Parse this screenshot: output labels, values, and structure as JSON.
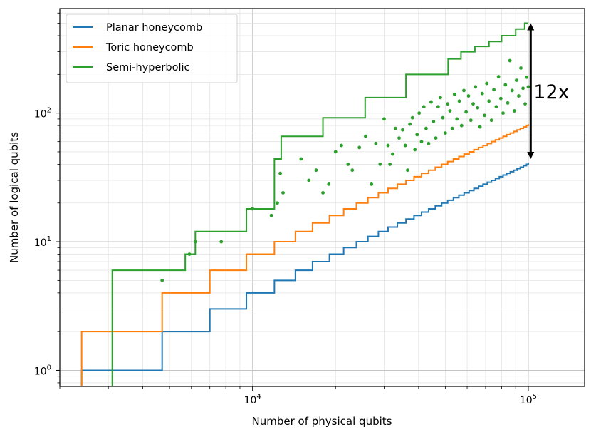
{
  "chart_data": {
    "type": "line",
    "title": "",
    "xlabel": "Number of physical qubits",
    "ylabel": "Number of logical qubits",
    "xscale": "log",
    "yscale": "log",
    "xlim": [
      2000,
      160000
    ],
    "ylim": [
      0.75,
      650
    ],
    "grid": true,
    "legend_position": "top-left",
    "x_ticks": [
      {
        "value": 10000,
        "base": "10",
        "exp": "4"
      },
      {
        "value": 100000,
        "base": "10",
        "exp": "5"
      }
    ],
    "y_ticks": [
      {
        "value": 1,
        "base": "10",
        "exp": "0"
      },
      {
        "value": 10,
        "base": "10",
        "exp": "1"
      },
      {
        "value": 100,
        "base": "10",
        "exp": "2"
      }
    ],
    "series": [
      {
        "name": "Planar honeycomb",
        "color": "#1f77b4",
        "style": "step",
        "points": [
          [
            2400,
            0.75
          ],
          [
            2400,
            1
          ],
          [
            4700,
            1
          ],
          [
            4700,
            2
          ],
          [
            7000,
            2
          ],
          [
            7000,
            3
          ],
          [
            9500,
            3
          ],
          [
            9500,
            4
          ],
          [
            12000,
            4
          ],
          [
            12000,
            5
          ],
          [
            14300,
            5
          ],
          [
            14300,
            6
          ],
          [
            16500,
            6
          ],
          [
            16500,
            7
          ],
          [
            19000,
            7
          ],
          [
            19000,
            8
          ],
          [
            21400,
            8
          ],
          [
            21400,
            9
          ],
          [
            23800,
            9
          ],
          [
            23800,
            10
          ],
          [
            26200,
            10
          ],
          [
            26200,
            11
          ],
          [
            28600,
            11
          ],
          [
            28600,
            12
          ],
          [
            31000,
            12
          ],
          [
            31000,
            13
          ],
          [
            33500,
            13
          ],
          [
            33500,
            14
          ],
          [
            36000,
            14
          ],
          [
            36000,
            15
          ],
          [
            38500,
            15
          ],
          [
            38500,
            16
          ],
          [
            41000,
            16
          ],
          [
            41000,
            17
          ],
          [
            43500,
            17
          ],
          [
            43500,
            18
          ],
          [
            46000,
            18
          ],
          [
            46000,
            19
          ],
          [
            48500,
            19
          ],
          [
            48500,
            20
          ],
          [
            51000,
            20
          ],
          [
            51000,
            21
          ],
          [
            53500,
            21
          ],
          [
            53500,
            22
          ],
          [
            56000,
            22
          ],
          [
            56000,
            23
          ],
          [
            58500,
            23
          ],
          [
            58500,
            24
          ],
          [
            61000,
            24
          ],
          [
            61000,
            25
          ],
          [
            63500,
            25
          ],
          [
            63500,
            26
          ],
          [
            66000,
            26
          ],
          [
            66000,
            27
          ],
          [
            68500,
            27
          ],
          [
            68500,
            28
          ],
          [
            71000,
            28
          ],
          [
            71000,
            29
          ],
          [
            73500,
            29
          ],
          [
            73500,
            30
          ],
          [
            76000,
            30
          ],
          [
            76000,
            31
          ],
          [
            78500,
            31
          ],
          [
            78500,
            32
          ],
          [
            81000,
            32
          ],
          [
            81000,
            33
          ],
          [
            83500,
            33
          ],
          [
            83500,
            34
          ],
          [
            86000,
            34
          ],
          [
            86000,
            35
          ],
          [
            88500,
            35
          ],
          [
            88500,
            36
          ],
          [
            91000,
            36
          ],
          [
            91000,
            37
          ],
          [
            93500,
            37
          ],
          [
            93500,
            38
          ],
          [
            96000,
            38
          ],
          [
            96000,
            39
          ],
          [
            98500,
            39
          ],
          [
            98500,
            40
          ],
          [
            100000,
            40
          ],
          [
            100000,
            41
          ]
        ]
      },
      {
        "name": "Toric honeycomb",
        "color": "#ff7f0e",
        "style": "step",
        "points": [
          [
            2400,
            0.75
          ],
          [
            2400,
            2
          ],
          [
            4700,
            2
          ],
          [
            4700,
            4
          ],
          [
            7000,
            4
          ],
          [
            7000,
            6
          ],
          [
            9500,
            6
          ],
          [
            9500,
            8
          ],
          [
            12000,
            8
          ],
          [
            12000,
            10
          ],
          [
            14300,
            10
          ],
          [
            14300,
            12
          ],
          [
            16500,
            12
          ],
          [
            16500,
            14
          ],
          [
            19000,
            14
          ],
          [
            19000,
            16
          ],
          [
            21400,
            16
          ],
          [
            21400,
            18
          ],
          [
            23800,
            18
          ],
          [
            23800,
            20
          ],
          [
            26200,
            20
          ],
          [
            26200,
            22
          ],
          [
            28600,
            22
          ],
          [
            28600,
            24
          ],
          [
            31000,
            24
          ],
          [
            31000,
            26
          ],
          [
            33500,
            26
          ],
          [
            33500,
            28
          ],
          [
            36000,
            28
          ],
          [
            36000,
            30
          ],
          [
            38500,
            30
          ],
          [
            38500,
            32
          ],
          [
            41000,
            32
          ],
          [
            41000,
            34
          ],
          [
            43500,
            34
          ],
          [
            43500,
            36
          ],
          [
            46000,
            36
          ],
          [
            46000,
            38
          ],
          [
            48500,
            38
          ],
          [
            48500,
            40
          ],
          [
            51000,
            40
          ],
          [
            51000,
            42
          ],
          [
            53500,
            42
          ],
          [
            53500,
            44
          ],
          [
            56000,
            44
          ],
          [
            56000,
            46
          ],
          [
            58500,
            46
          ],
          [
            58500,
            48
          ],
          [
            61000,
            48
          ],
          [
            61000,
            50
          ],
          [
            63500,
            50
          ],
          [
            63500,
            52
          ],
          [
            66000,
            52
          ],
          [
            66000,
            54
          ],
          [
            68500,
            54
          ],
          [
            68500,
            56
          ],
          [
            71000,
            56
          ],
          [
            71000,
            58
          ],
          [
            73500,
            58
          ],
          [
            73500,
            60
          ],
          [
            76000,
            60
          ],
          [
            76000,
            62
          ],
          [
            78500,
            62
          ],
          [
            78500,
            64
          ],
          [
            81000,
            64
          ],
          [
            81000,
            66
          ],
          [
            83500,
            66
          ],
          [
            83500,
            68
          ],
          [
            86000,
            68
          ],
          [
            86000,
            70
          ],
          [
            88500,
            70
          ],
          [
            88500,
            72
          ],
          [
            91000,
            72
          ],
          [
            91000,
            74
          ],
          [
            93500,
            74
          ],
          [
            93500,
            76
          ],
          [
            96000,
            76
          ],
          [
            96000,
            78
          ],
          [
            98500,
            78
          ],
          [
            98500,
            80
          ],
          [
            100000,
            80
          ],
          [
            100000,
            82
          ]
        ]
      },
      {
        "name": "Semi-hyperbolic",
        "color": "#2ca02c",
        "style": "step",
        "points": [
          [
            3100,
            0.75
          ],
          [
            3100,
            6
          ],
          [
            5700,
            6
          ],
          [
            5700,
            8
          ],
          [
            6200,
            8
          ],
          [
            6200,
            12
          ],
          [
            9500,
            12
          ],
          [
            9500,
            18
          ],
          [
            12000,
            18
          ],
          [
            12000,
            44
          ],
          [
            12700,
            44
          ],
          [
            12700,
            66
          ],
          [
            18000,
            66
          ],
          [
            18000,
            92
          ],
          [
            25600,
            92
          ],
          [
            25600,
            132
          ],
          [
            36000,
            132
          ],
          [
            36000,
            200
          ],
          [
            51200,
            200
          ],
          [
            51200,
            264
          ],
          [
            57000,
            264
          ],
          [
            57000,
            300
          ],
          [
            64000,
            300
          ],
          [
            64000,
            330
          ],
          [
            72000,
            330
          ],
          [
            72000,
            360
          ],
          [
            80000,
            360
          ],
          [
            80000,
            400
          ],
          [
            90000,
            400
          ],
          [
            90000,
            450
          ],
          [
            97000,
            450
          ],
          [
            97000,
            500
          ],
          [
            100000,
            500
          ]
        ]
      },
      {
        "name": "",
        "color": "#2ca02c",
        "style": "scatter",
        "points": [
          [
            4700,
            5
          ],
          [
            5900,
            8
          ],
          [
            6200,
            10
          ],
          [
            7700,
            10
          ],
          [
            10000,
            18
          ],
          [
            11700,
            16
          ],
          [
            12300,
            20
          ],
          [
            12600,
            34
          ],
          [
            12900,
            24
          ],
          [
            15000,
            44
          ],
          [
            16000,
            30
          ],
          [
            17000,
            36
          ],
          [
            18000,
            24
          ],
          [
            18900,
            28
          ],
          [
            20000,
            50
          ],
          [
            21000,
            56
          ],
          [
            22200,
            40
          ],
          [
            23000,
            36
          ],
          [
            24400,
            54
          ],
          [
            25700,
            66
          ],
          [
            27000,
            28
          ],
          [
            28000,
            58
          ],
          [
            29000,
            40
          ],
          [
            30000,
            90
          ],
          [
            31000,
            56
          ],
          [
            31500,
            40
          ],
          [
            32200,
            48
          ],
          [
            33000,
            76
          ],
          [
            34000,
            64
          ],
          [
            35000,
            74
          ],
          [
            35800,
            56
          ],
          [
            36500,
            36
          ],
          [
            37200,
            82
          ],
          [
            38000,
            92
          ],
          [
            38800,
            52
          ],
          [
            39500,
            68
          ],
          [
            40200,
            100
          ],
          [
            41000,
            60
          ],
          [
            41800,
            112
          ],
          [
            42600,
            76
          ],
          [
            43500,
            58
          ],
          [
            44400,
            122
          ],
          [
            45300,
            86
          ],
          [
            46200,
            64
          ],
          [
            47100,
            112
          ],
          [
            48000,
            132
          ],
          [
            49000,
            92
          ],
          [
            50000,
            70
          ],
          [
            51000,
            118
          ],
          [
            52000,
            104
          ],
          [
            53000,
            76
          ],
          [
            54000,
            140
          ],
          [
            55100,
            90
          ],
          [
            56200,
            124
          ],
          [
            57300,
            80
          ],
          [
            58400,
            150
          ],
          [
            59500,
            102
          ],
          [
            60700,
            136
          ],
          [
            61900,
            88
          ],
          [
            63100,
            118
          ],
          [
            64300,
            160
          ],
          [
            65500,
            110
          ],
          [
            66800,
            78
          ],
          [
            68100,
            142
          ],
          [
            69400,
            96
          ],
          [
            70700,
            170
          ],
          [
            72000,
            124
          ],
          [
            73500,
            88
          ],
          [
            75000,
            152
          ],
          [
            76500,
            112
          ],
          [
            78000,
            192
          ],
          [
            79500,
            130
          ],
          [
            81000,
            100
          ],
          [
            82600,
            166
          ],
          [
            84200,
            120
          ],
          [
            85800,
            256
          ],
          [
            87400,
            150
          ],
          [
            89000,
            104
          ],
          [
            90600,
            180
          ],
          [
            92300,
            136
          ],
          [
            94000,
            224
          ],
          [
            95700,
            156
          ],
          [
            97400,
            118
          ],
          [
            98600,
            190
          ],
          [
            100000,
            160
          ]
        ]
      }
    ],
    "annotation": {
      "text": "12x",
      "x": 102000,
      "y_from": 44,
      "y_to": 500
    }
  }
}
